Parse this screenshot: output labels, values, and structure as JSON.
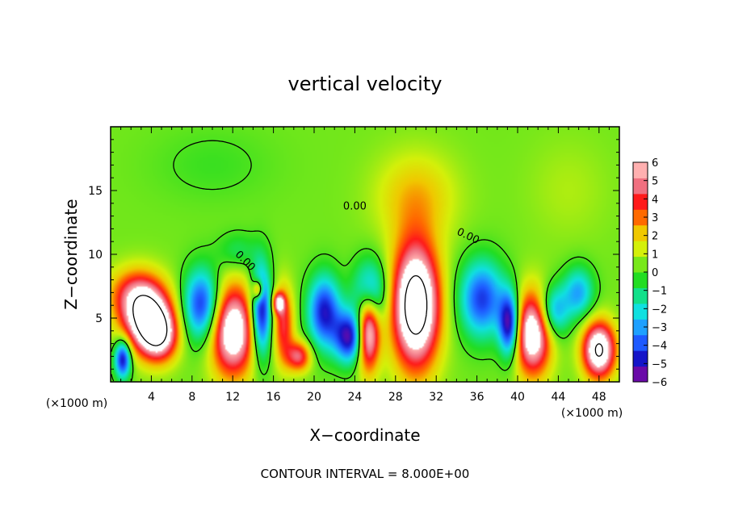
{
  "chart_data": {
    "type": "heatmap",
    "title": "vertical velocity",
    "xlabel": "X−coordinate",
    "ylabel": "Z−coordinate",
    "x_unit_left": "(×1000 m)",
    "x_unit_right": "(×1000 m)",
    "footer": "CONTOUR INTERVAL = 8.000E+00",
    "xlim": [
      0,
      50
    ],
    "ylim": [
      0,
      20
    ],
    "x_ticks": [
      4,
      8,
      12,
      16,
      20,
      24,
      28,
      32,
      36,
      40,
      44,
      48
    ],
    "y_ticks": [
      5,
      10,
      15
    ],
    "colorbar": {
      "range": [
        -6,
        6
      ],
      "tick_labels": [
        "6",
        "5",
        "4",
        "3",
        "2",
        "1",
        "0",
        "−1",
        "−2",
        "−3",
        "−4",
        "−5",
        "−6"
      ],
      "colors": [
        "#6a0aa8",
        "#1515c8",
        "#1e5aff",
        "#1ea0ff",
        "#10e0e0",
        "#12e08a",
        "#22dd22",
        "#78e81a",
        "#d4f00a",
        "#f0c800",
        "#ff6a00",
        "#ff1a1a",
        "#f07080",
        "#ffb0b0"
      ]
    },
    "contour_labels": [
      "0.00",
      "0.00",
      "0.00"
    ],
    "features": [
      {
        "x": 1.2,
        "z": 1.8,
        "w": -6.0,
        "rx": 0.8,
        "rz": 1.5
      },
      {
        "x": 3.5,
        "z": 5.2,
        "w": 8.0,
        "rx": 2.4,
        "rz": 2.6
      },
      {
        "x": 4.8,
        "z": 3.6,
        "w": 5.5,
        "rx": 1.8,
        "rz": 2.0
      },
      {
        "x": 2.0,
        "z": 7.0,
        "w": 2.5,
        "rx": 2.5,
        "rz": 2.0
      },
      {
        "x": 9.0,
        "z": 6.0,
        "w": -5.5,
        "rx": 1.8,
        "rz": 2.8
      },
      {
        "x": 12.0,
        "z": 4.0,
        "w": 7.5,
        "rx": 2.2,
        "rz": 3.5
      },
      {
        "x": 14.8,
        "z": 5.5,
        "w": -6.5,
        "rx": 1.0,
        "rz": 3.5
      },
      {
        "x": 14.5,
        "z": 7.2,
        "w": 5.0,
        "rx": 0.5,
        "rz": 0.8
      },
      {
        "x": 12.5,
        "z": 10.2,
        "w": -1.5,
        "rx": 2.0,
        "rz": 1.5
      },
      {
        "x": 17.0,
        "z": 4.5,
        "w": 4.0,
        "rx": 1.0,
        "rz": 3.0
      },
      {
        "x": 18.5,
        "z": 2.0,
        "w": 4.5,
        "rx": 1.2,
        "rz": 1.2
      },
      {
        "x": 16.5,
        "z": 6.2,
        "w": 5.0,
        "rx": 0.6,
        "rz": 0.8
      },
      {
        "x": 21.0,
        "z": 5.5,
        "w": -5.5,
        "rx": 1.6,
        "rz": 2.8
      },
      {
        "x": 23.5,
        "z": 3.5,
        "w": -6.0,
        "rx": 1.5,
        "rz": 2.0
      },
      {
        "x": 25.3,
        "z": 4.0,
        "w": 7.5,
        "rx": 1.1,
        "rz": 3.0
      },
      {
        "x": 25.5,
        "z": 7.0,
        "w": -4.5,
        "rx": 1.6,
        "rz": 2.5
      },
      {
        "x": 30.0,
        "z": 6.0,
        "w": 9.5,
        "rx": 2.3,
        "rz": 4.8
      },
      {
        "x": 30.0,
        "z": 14.5,
        "w": 2.0,
        "rx": 4.0,
        "rz": 3.5
      },
      {
        "x": 36.5,
        "z": 6.5,
        "w": -5.0,
        "rx": 2.2,
        "rz": 3.0
      },
      {
        "x": 39.2,
        "z": 4.5,
        "w": -6.5,
        "rx": 1.0,
        "rz": 2.5
      },
      {
        "x": 41.5,
        "z": 3.8,
        "w": 7.5,
        "rx": 1.8,
        "rz": 3.2
      },
      {
        "x": 43.5,
        "z": 5.5,
        "w": -4.0,
        "rx": 1.5,
        "rz": 2.0
      },
      {
        "x": 48.0,
        "z": 2.5,
        "w": 8.0,
        "rx": 1.6,
        "rz": 2.2
      },
      {
        "x": 46.0,
        "z": 7.0,
        "w": -3.5,
        "rx": 1.5,
        "rz": 2.0
      },
      {
        "x": 10.0,
        "z": 17.0,
        "w": -0.6,
        "rx": 6.0,
        "rz": 3.0
      },
      {
        "x": 45.0,
        "z": 15.0,
        "w": 0.6,
        "rx": 4.0,
        "rz": 4.0
      }
    ],
    "background_w": 0.4,
    "contour_levels": [
      -8,
      0,
      8
    ]
  }
}
